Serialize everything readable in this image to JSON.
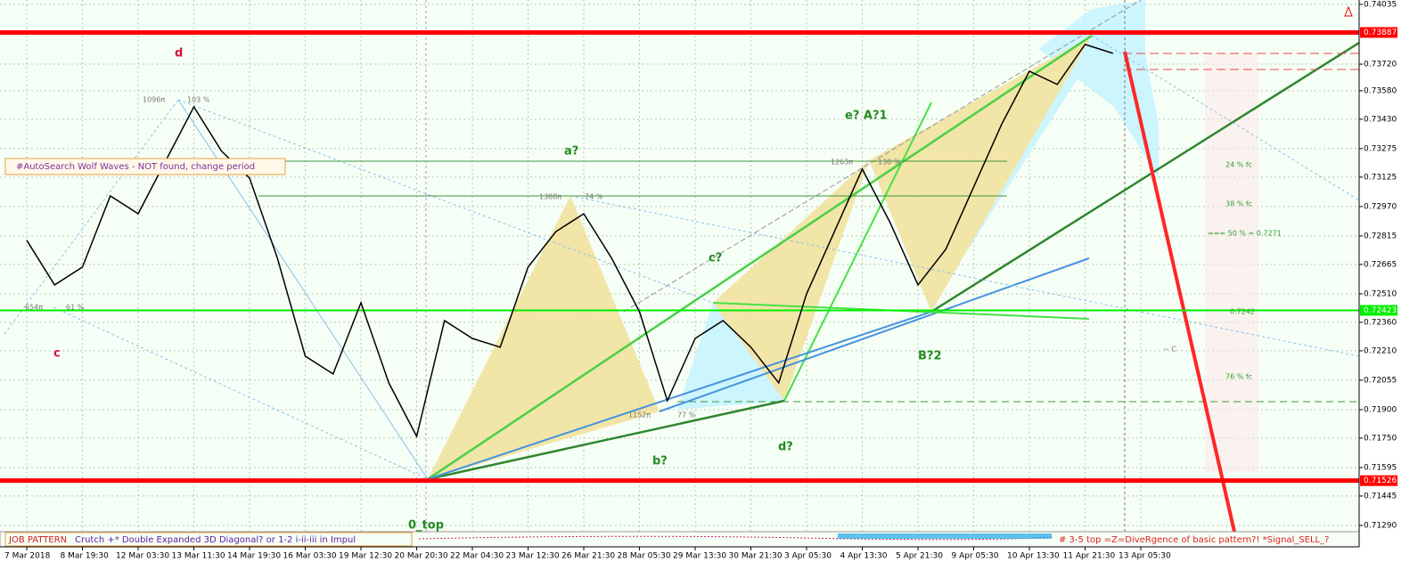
{
  "chart_data": {
    "type": "line",
    "categories": [
      "7 Mar 2018",
      null,
      "8 Mar 19:30",
      null,
      "12 Mar 03:30",
      null,
      "13 Mar 11:30",
      null,
      "14 Mar 19:30",
      null,
      "16 Mar 03:30",
      null,
      "19 Mar 12:30",
      null,
      "20 Mar 20:30",
      null,
      "22 Mar 04:30",
      null,
      "23 Mar 12:30",
      null,
      "26 Mar 21:30",
      null,
      "28 Mar 05:30",
      null,
      "29 Mar 13:30",
      null,
      "30 Mar 21:30",
      null,
      "3 Apr 05:30",
      null,
      "4 Apr 13:30",
      null,
      "5 Apr 21:30",
      null,
      "9 Apr 05:30",
      null,
      "10 Apr 13:30",
      null,
      "11 Apr 21:30",
      null,
      "13 Apr 05:30"
    ],
    "series": [
      {
        "color": "#000000",
        "values": [
          0.72792,
          0.72557,
          0.72651,
          0.73026,
          0.72932,
          0.73214,
          0.73495,
          0.73261,
          0.7312,
          0.72698,
          0.72182,
          0.72088,
          0.72463,
          0.72041,
          0.71759,
          0.72369,
          0.72275,
          0.72229,
          0.72651,
          0.72838,
          0.72932,
          0.72698,
          0.72416,
          0.71947,
          0.72275,
          0.72369,
          0.72229,
          0.72041,
          0.7251,
          0.72838,
          0.73167,
          0.72885,
          0.72557,
          0.72745,
          0.73073,
          0.73402,
          0.73683,
          0.73613,
          0.73824,
          0.73777,
          null
        ]
      }
    ],
    "ylim": [
      0.74058,
      0.71257
    ],
    "yticks": [
      0.74035,
      {
        "value": 0.7372,
        "label": "0.73720"
      },
      {
        "value": 0.7358,
        "label": "0.73580"
      },
      {
        "value": 0.7343,
        "label": "0.73430"
      },
      0.73275,
      0.73125,
      {
        "value": 0.7297,
        "label": "0.72970"
      },
      0.72815,
      0.72665,
      {
        "value": 0.7251,
        "label": "0.72510"
      },
      {
        "value": 0.7236,
        "label": "0.72360"
      },
      {
        "value": 0.7221,
        "label": "0.72210"
      },
      0.72055,
      {
        "value": 0.719,
        "label": "0.71900"
      },
      {
        "value": 0.7175,
        "label": "0.71750"
      },
      0.71595,
      0.71445,
      {
        "value": 0.7129,
        "label": "0.71290"
      }
    ],
    "levels": [
      {
        "value": 0.73887,
        "color": "#ff0000"
      },
      {
        "value": 0.72423,
        "color": "#00ee00"
      },
      {
        "value": 0.71526,
        "color": "#ff0000"
      }
    ],
    "grid": true,
    "annotations": {
      "d": "d",
      "c": "c",
      "a": "a?",
      "b": "b?",
      "c2": "c?",
      "d2": "d?",
      "e": "e? A?1",
      "b2": "B?2",
      "top": "0_top",
      "wolf": "#AutoSearch Wolf Waves - NOT found, change period",
      "job": "JOB PATTERN",
      "crutch": "Crutch +* Double Expanded 3D Diagonal? or 1-2 i-ii-iii in Impul",
      "signal": "# 3-5 top =Z=DivеRgence of basic pattern?! *Signal_SELL_?",
      "p1": "1096π",
      "p1b": "103 %",
      "p2": "654π",
      "p2b": "61 %",
      "p3": "1388π",
      "p3b": "74 %",
      "p4": "1152π",
      "p4b": "77 %",
      "p5": "1263π",
      "p5b": "130 %",
      "f1": "24 % fc",
      "f2": "38 % fc",
      "f3": "=== 50 % = 0.7271",
      "f4": "0.7242",
      "f5": "76 % fc",
      "f6": "~ C"
    }
  }
}
